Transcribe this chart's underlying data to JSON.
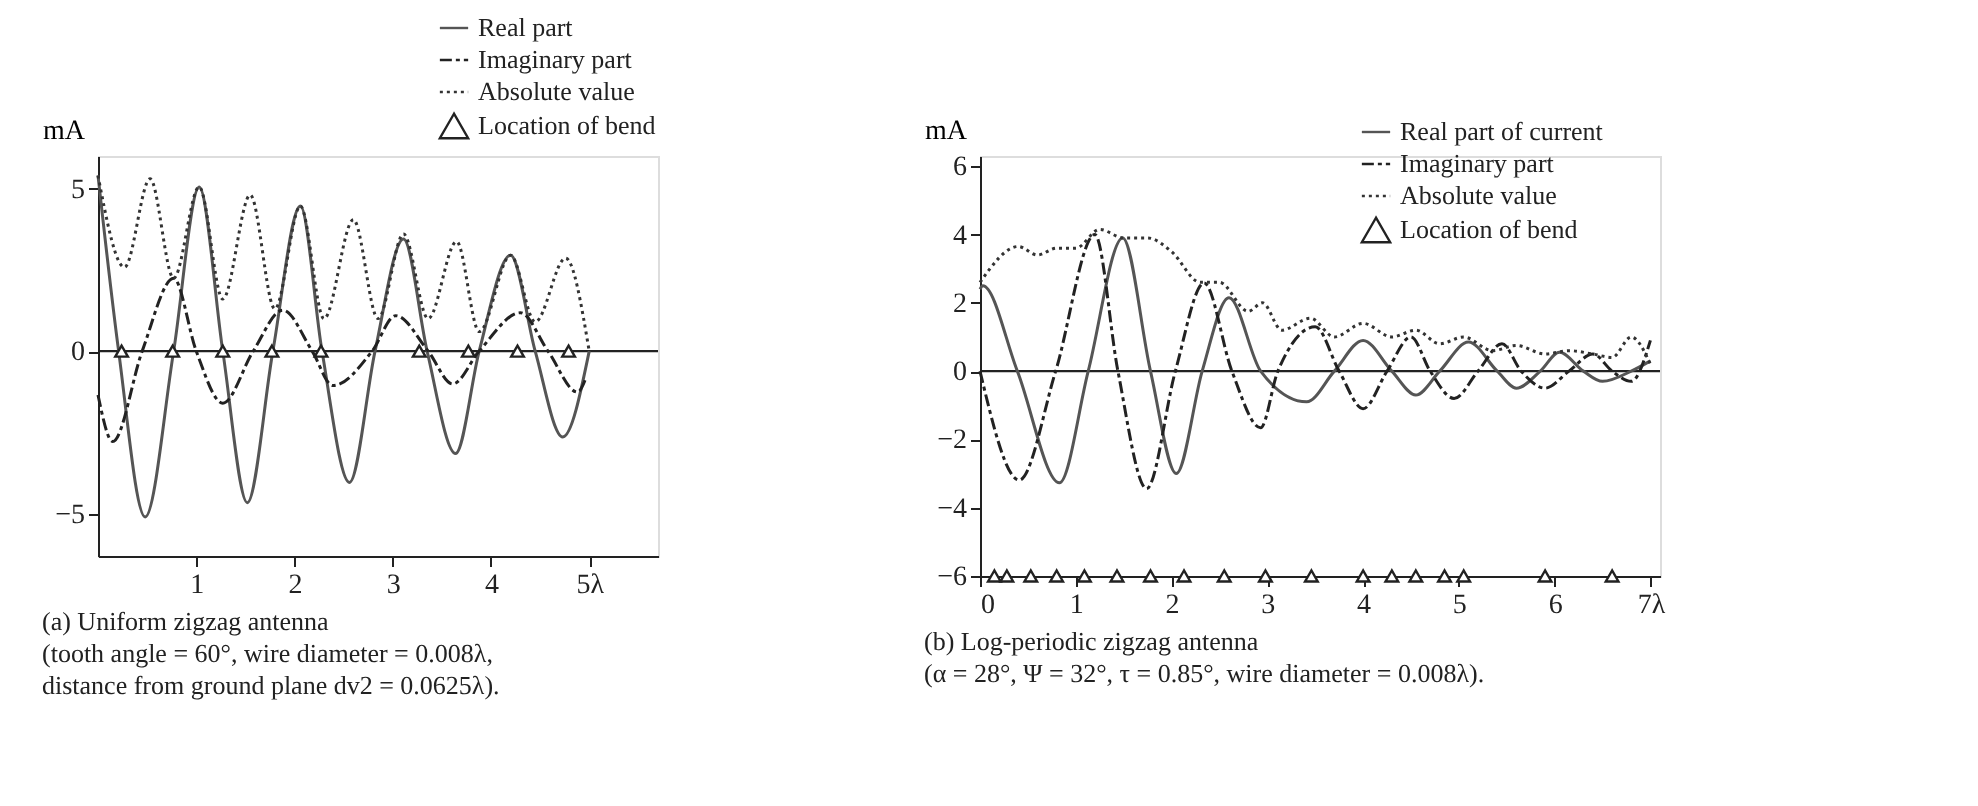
{
  "chart_data": [
    {
      "type": "line",
      "ylabel": "mA",
      "xlim": [
        0,
        5.7
      ],
      "ylim": [
        -6.3,
        6
      ],
      "xticks": [
        1,
        2,
        3,
        4,
        {
          "value": 5,
          "label": "5λ"
        }
      ],
      "yticks": [
        {
          "value": -5,
          "label": "−5"
        },
        0,
        5
      ],
      "legend": "top right",
      "ref_lines": [
        {
          "axis": "y",
          "value": 0
        }
      ],
      "annotations": [
        "(a) Uniform zigzag antenna",
        "(tooth angle = 60°, wire diameter = 0.008λ,",
        "distance from ground plane dv2 = 0.0625λ)."
      ],
      "series": [
        {
          "name": "Real part",
          "color": "#555555",
          "line_style": "solid",
          "x": [
            0,
            0.21,
            0.48,
            0.77,
            1.03,
            1.27,
            1.52,
            1.78,
            2.06,
            2.28,
            2.56,
            2.82,
            3.11,
            3.35,
            3.64,
            3.88,
            4.2,
            4.45,
            4.73,
            5.0
          ],
          "values": [
            5.4,
            0,
            -5.1,
            0,
            5.05,
            0,
            -4.66,
            0,
            4.46,
            0,
            -4.04,
            0,
            3.45,
            0,
            -3.15,
            0,
            2.95,
            0,
            -2.64,
            0
          ]
        },
        {
          "name": "Imaginary part",
          "color": "#222222",
          "line_style": "dashed",
          "x": [
            0,
            0.15,
            0.45,
            0.77,
            1.0,
            1.27,
            1.58,
            1.88,
            2.18,
            2.39,
            2.79,
            3.03,
            3.36,
            3.61,
            3.88,
            4.3,
            4.58,
            4.88,
            4.97
          ],
          "values": [
            -1.35,
            -2.78,
            0,
            2.24,
            0,
            -1.6,
            0,
            1.26,
            0,
            -1.06,
            0,
            1.09,
            0,
            -1.01,
            0,
            1.18,
            0,
            -1.26,
            -0.8
          ]
        },
        {
          "name": "Absolute value",
          "color": "#333333",
          "line_style": "dotted",
          "x": [
            0,
            0.27,
            0.53,
            0.77,
            1.03,
            1.27,
            1.55,
            1.8,
            2.06,
            2.3,
            2.6,
            2.85,
            3.11,
            3.36,
            3.65,
            3.88,
            4.2,
            4.45,
            4.76,
            5.0
          ],
          "values": [
            5.4,
            2.58,
            5.3,
            2.24,
            5.05,
            1.6,
            4.8,
            1.3,
            4.46,
            1.0,
            4.04,
            1.0,
            3.6,
            1.0,
            3.37,
            0.6,
            2.95,
            0.9,
            2.86,
            0
          ]
        },
        {
          "name": "Location of bend",
          "type": "scatter",
          "marker": "triangle",
          "color": "#222222",
          "x": [
            0.24,
            0.76,
            1.27,
            1.77,
            2.27,
            3.27,
            3.77,
            4.27,
            4.79
          ],
          "values": [
            0,
            0,
            0,
            0,
            0,
            0,
            0,
            0,
            0
          ]
        }
      ]
    },
    {
      "type": "line",
      "ylabel": "mA",
      "xlim": [
        0,
        7.1
      ],
      "ylim": [
        -6,
        6.3
      ],
      "xticks": [
        0,
        1,
        2,
        3,
        4,
        5,
        6,
        {
          "value": 7,
          "label": "7λ"
        }
      ],
      "yticks": [
        {
          "value": -6,
          "label": "−6"
        },
        {
          "value": -4,
          "label": "−4"
        },
        {
          "value": -2,
          "label": "−2"
        },
        0,
        2,
        4,
        6
      ],
      "legend": "top right",
      "ref_lines": [
        {
          "axis": "y",
          "value": 0
        }
      ],
      "annotations": [
        "(b) Log-periodic zigzag antenna",
        "(α = 28°, Ψ = 32°, τ = 0.85°, wire diameter = 0.008λ)."
      ],
      "series": [
        {
          "name": "Real part of current",
          "color": "#555555",
          "line_style": "solid",
          "x": [
            0,
            0.03,
            0.39,
            0.83,
            1.13,
            1.49,
            1.78,
            2.05,
            2.32,
            2.6,
            2.93,
            3.41,
            3.7,
            4.0,
            4.3,
            4.55,
            4.8,
            5.1,
            5.4,
            5.6,
            5.85,
            6.05,
            6.3,
            6.5,
            6.8,
            7.0
          ],
          "values": [
            2.4,
            2.5,
            0,
            -3.27,
            0,
            3.9,
            0,
            -3.0,
            0,
            2.15,
            0,
            -0.9,
            0,
            0.9,
            0,
            -0.7,
            0,
            0.85,
            0,
            -0.5,
            0,
            0.55,
            0,
            -0.3,
            0,
            0.3
          ]
        },
        {
          "name": "Imaginary part",
          "color": "#222222",
          "line_style": "dashed",
          "x": [
            0,
            0.41,
            0.79,
            1.2,
            1.44,
            1.74,
            2.04,
            2.34,
            2.63,
            2.93,
            3.11,
            3.5,
            3.75,
            4.0,
            4.25,
            4.5,
            4.7,
            4.95,
            5.2,
            5.45,
            5.65,
            5.9,
            6.15,
            6.4,
            6.6,
            6.8,
            7.0
          ],
          "values": [
            0,
            -3.19,
            0,
            4.0,
            0,
            -3.44,
            0,
            2.58,
            0,
            -1.66,
            0,
            1.3,
            0,
            -1.1,
            0,
            1.0,
            0,
            -0.8,
            0,
            0.8,
            0,
            -0.5,
            0,
            0.5,
            0,
            -0.3,
            0.9
          ]
        },
        {
          "name": "Absolute value",
          "color": "#333333",
          "line_style": "dotted",
          "x": [
            0,
            0.4,
            0.6,
            0.8,
            1.0,
            1.25,
            1.5,
            1.75,
            2.0,
            2.3,
            2.5,
            2.8,
            2.95,
            3.15,
            3.45,
            3.7,
            4.0,
            4.3,
            4.55,
            4.8,
            5.05,
            5.35,
            5.6,
            5.9,
            6.15,
            6.4,
            6.6,
            6.8,
            7.0
          ],
          "values": [
            2.6,
            3.65,
            3.4,
            3.6,
            3.6,
            4.15,
            3.9,
            3.9,
            3.5,
            2.6,
            2.6,
            1.75,
            2.0,
            1.2,
            1.55,
            1.0,
            1.4,
            1.0,
            1.2,
            0.8,
            1.0,
            0.6,
            0.75,
            0.5,
            0.6,
            0.5,
            0.4,
            1.0,
            0.2
          ]
        },
        {
          "name": "Location of bend",
          "type": "scatter",
          "marker": "triangle",
          "color": "#222222",
          "x": [
            0.15,
            0.28,
            0.53,
            0.8,
            1.09,
            1.43,
            1.78,
            2.13,
            2.55,
            2.98,
            3.46,
            4.0,
            4.55,
            5.05,
            5.9,
            6.6
          ],
          "values": [
            -6,
            -6,
            -6,
            -6,
            -6,
            -6,
            -6,
            -6,
            -6,
            -6,
            -6,
            -6,
            -6,
            -6,
            -6,
            -6
          ]
        },
        {
          "type": "scatter",
          "marker": "triangle",
          "color": "#222222",
          "x": [
            4.3,
            4.85
          ],
          "values": [
            -6,
            -6
          ]
        }
      ]
    }
  ]
}
